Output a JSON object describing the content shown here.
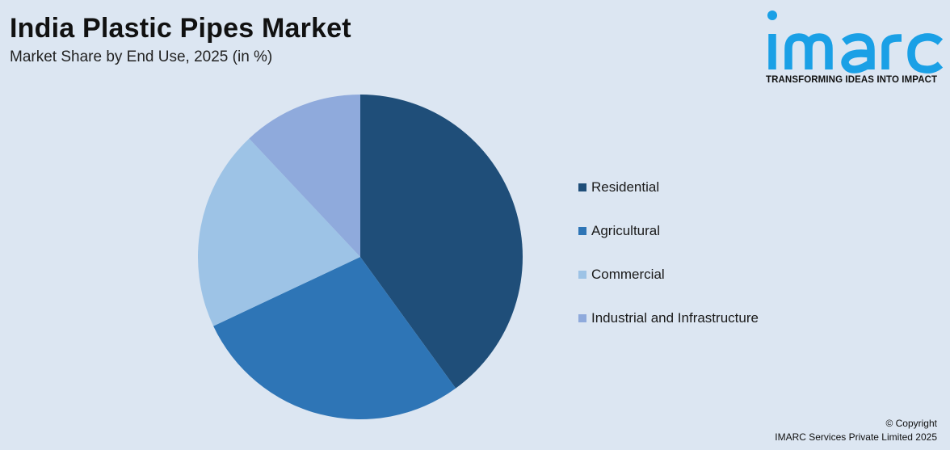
{
  "header": {
    "title": "India Plastic Pipes Market",
    "subtitle": "Market Share by End Use, 2025 (in %)"
  },
  "logo": {
    "wordmark": "imarc",
    "tagline": "TRANSFORMING IDEAS INTO IMPACT",
    "color": "#1aa0e6"
  },
  "chart_data": {
    "type": "pie",
    "title": "India Plastic Pipes Market",
    "subtitle": "Market Share by End Use, 2025 (in %)",
    "legend_position": "right",
    "categories": [
      "Residential",
      "Agricultural",
      "Commercial",
      "Industrial and Infrastructure"
    ],
    "values": [
      40,
      28,
      20,
      12
    ],
    "colors": [
      "#1f4e79",
      "#2e75b6",
      "#9dc3e6",
      "#8faadc"
    ]
  },
  "footer": {
    "copyright_line1": "© Copyright",
    "copyright_line2": "IMARC Services Private Limited 2025"
  }
}
